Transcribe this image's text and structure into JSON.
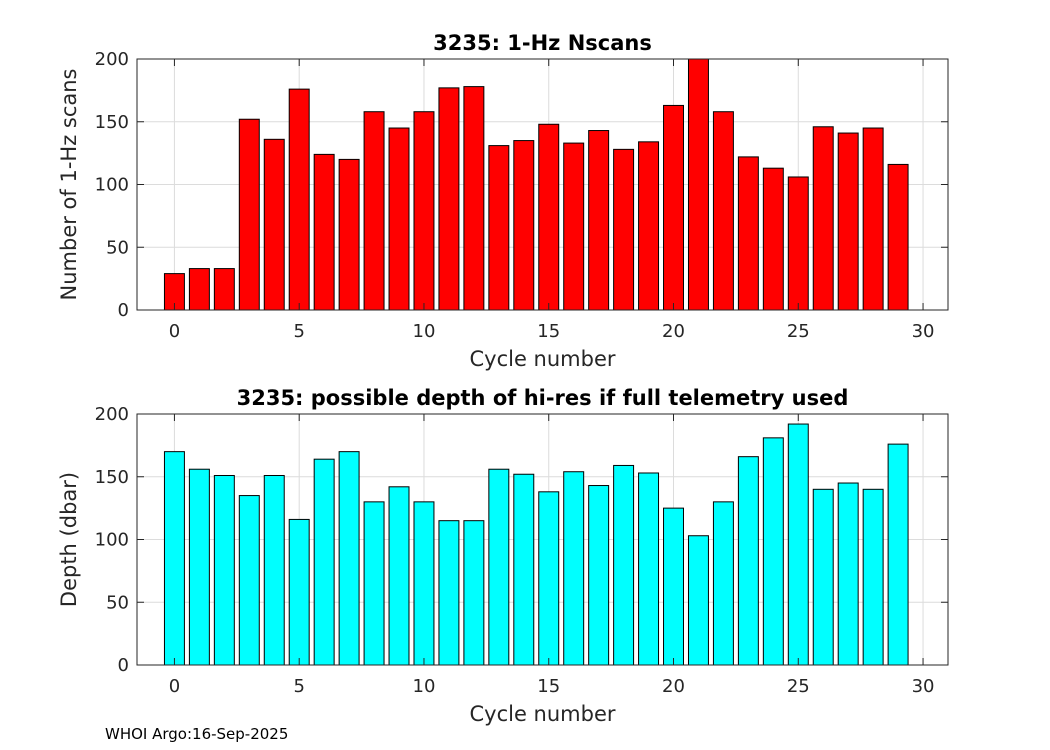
{
  "chart_data": [
    {
      "type": "bar",
      "title": "3235: 1-Hz Nscans",
      "xlabel": "Cycle number",
      "ylabel": "Number of 1-Hz scans",
      "xlim": [
        -1.5,
        31
      ],
      "ylim": [
        0,
        200
      ],
      "xticks": [
        0,
        5,
        10,
        15,
        20,
        25,
        30
      ],
      "yticks": [
        0,
        50,
        100,
        150,
        200
      ],
      "grid": true,
      "color": "#ff0000",
      "x": [
        0,
        1,
        2,
        3,
        4,
        5,
        6,
        7,
        8,
        9,
        10,
        11,
        12,
        13,
        14,
        15,
        16,
        17,
        18,
        19,
        20,
        21,
        22,
        23,
        24,
        25,
        26,
        27,
        28,
        29
      ],
      "values": [
        29,
        33,
        33,
        152,
        136,
        176,
        124,
        120,
        158,
        145,
        158,
        177,
        178,
        131,
        135,
        148,
        133,
        143,
        128,
        134,
        163,
        200,
        158,
        122,
        113,
        106,
        146,
        141,
        145,
        116
      ]
    },
    {
      "type": "bar",
      "title": "3235: possible depth of hi-res if full telemetry used",
      "xlabel": "Cycle number",
      "ylabel": "Depth (dbar)",
      "xlim": [
        -1.5,
        31
      ],
      "ylim": [
        0,
        200
      ],
      "xticks": [
        0,
        5,
        10,
        15,
        20,
        25,
        30
      ],
      "yticks": [
        0,
        50,
        100,
        150,
        200
      ],
      "grid": true,
      "color": "#00ffff",
      "x": [
        0,
        1,
        2,
        3,
        4,
        5,
        6,
        7,
        8,
        9,
        10,
        11,
        12,
        13,
        14,
        15,
        16,
        17,
        18,
        19,
        20,
        21,
        22,
        23,
        24,
        25,
        26,
        27,
        28,
        29
      ],
      "values": [
        170,
        156,
        151,
        135,
        151,
        116,
        164,
        170,
        130,
        142,
        130,
        115,
        115,
        156,
        152,
        138,
        154,
        143,
        159,
        153,
        125,
        103,
        130,
        166,
        181,
        192,
        140,
        145,
        140,
        176
      ]
    }
  ],
  "footer": "WHOI Argo:16-Sep-2025"
}
